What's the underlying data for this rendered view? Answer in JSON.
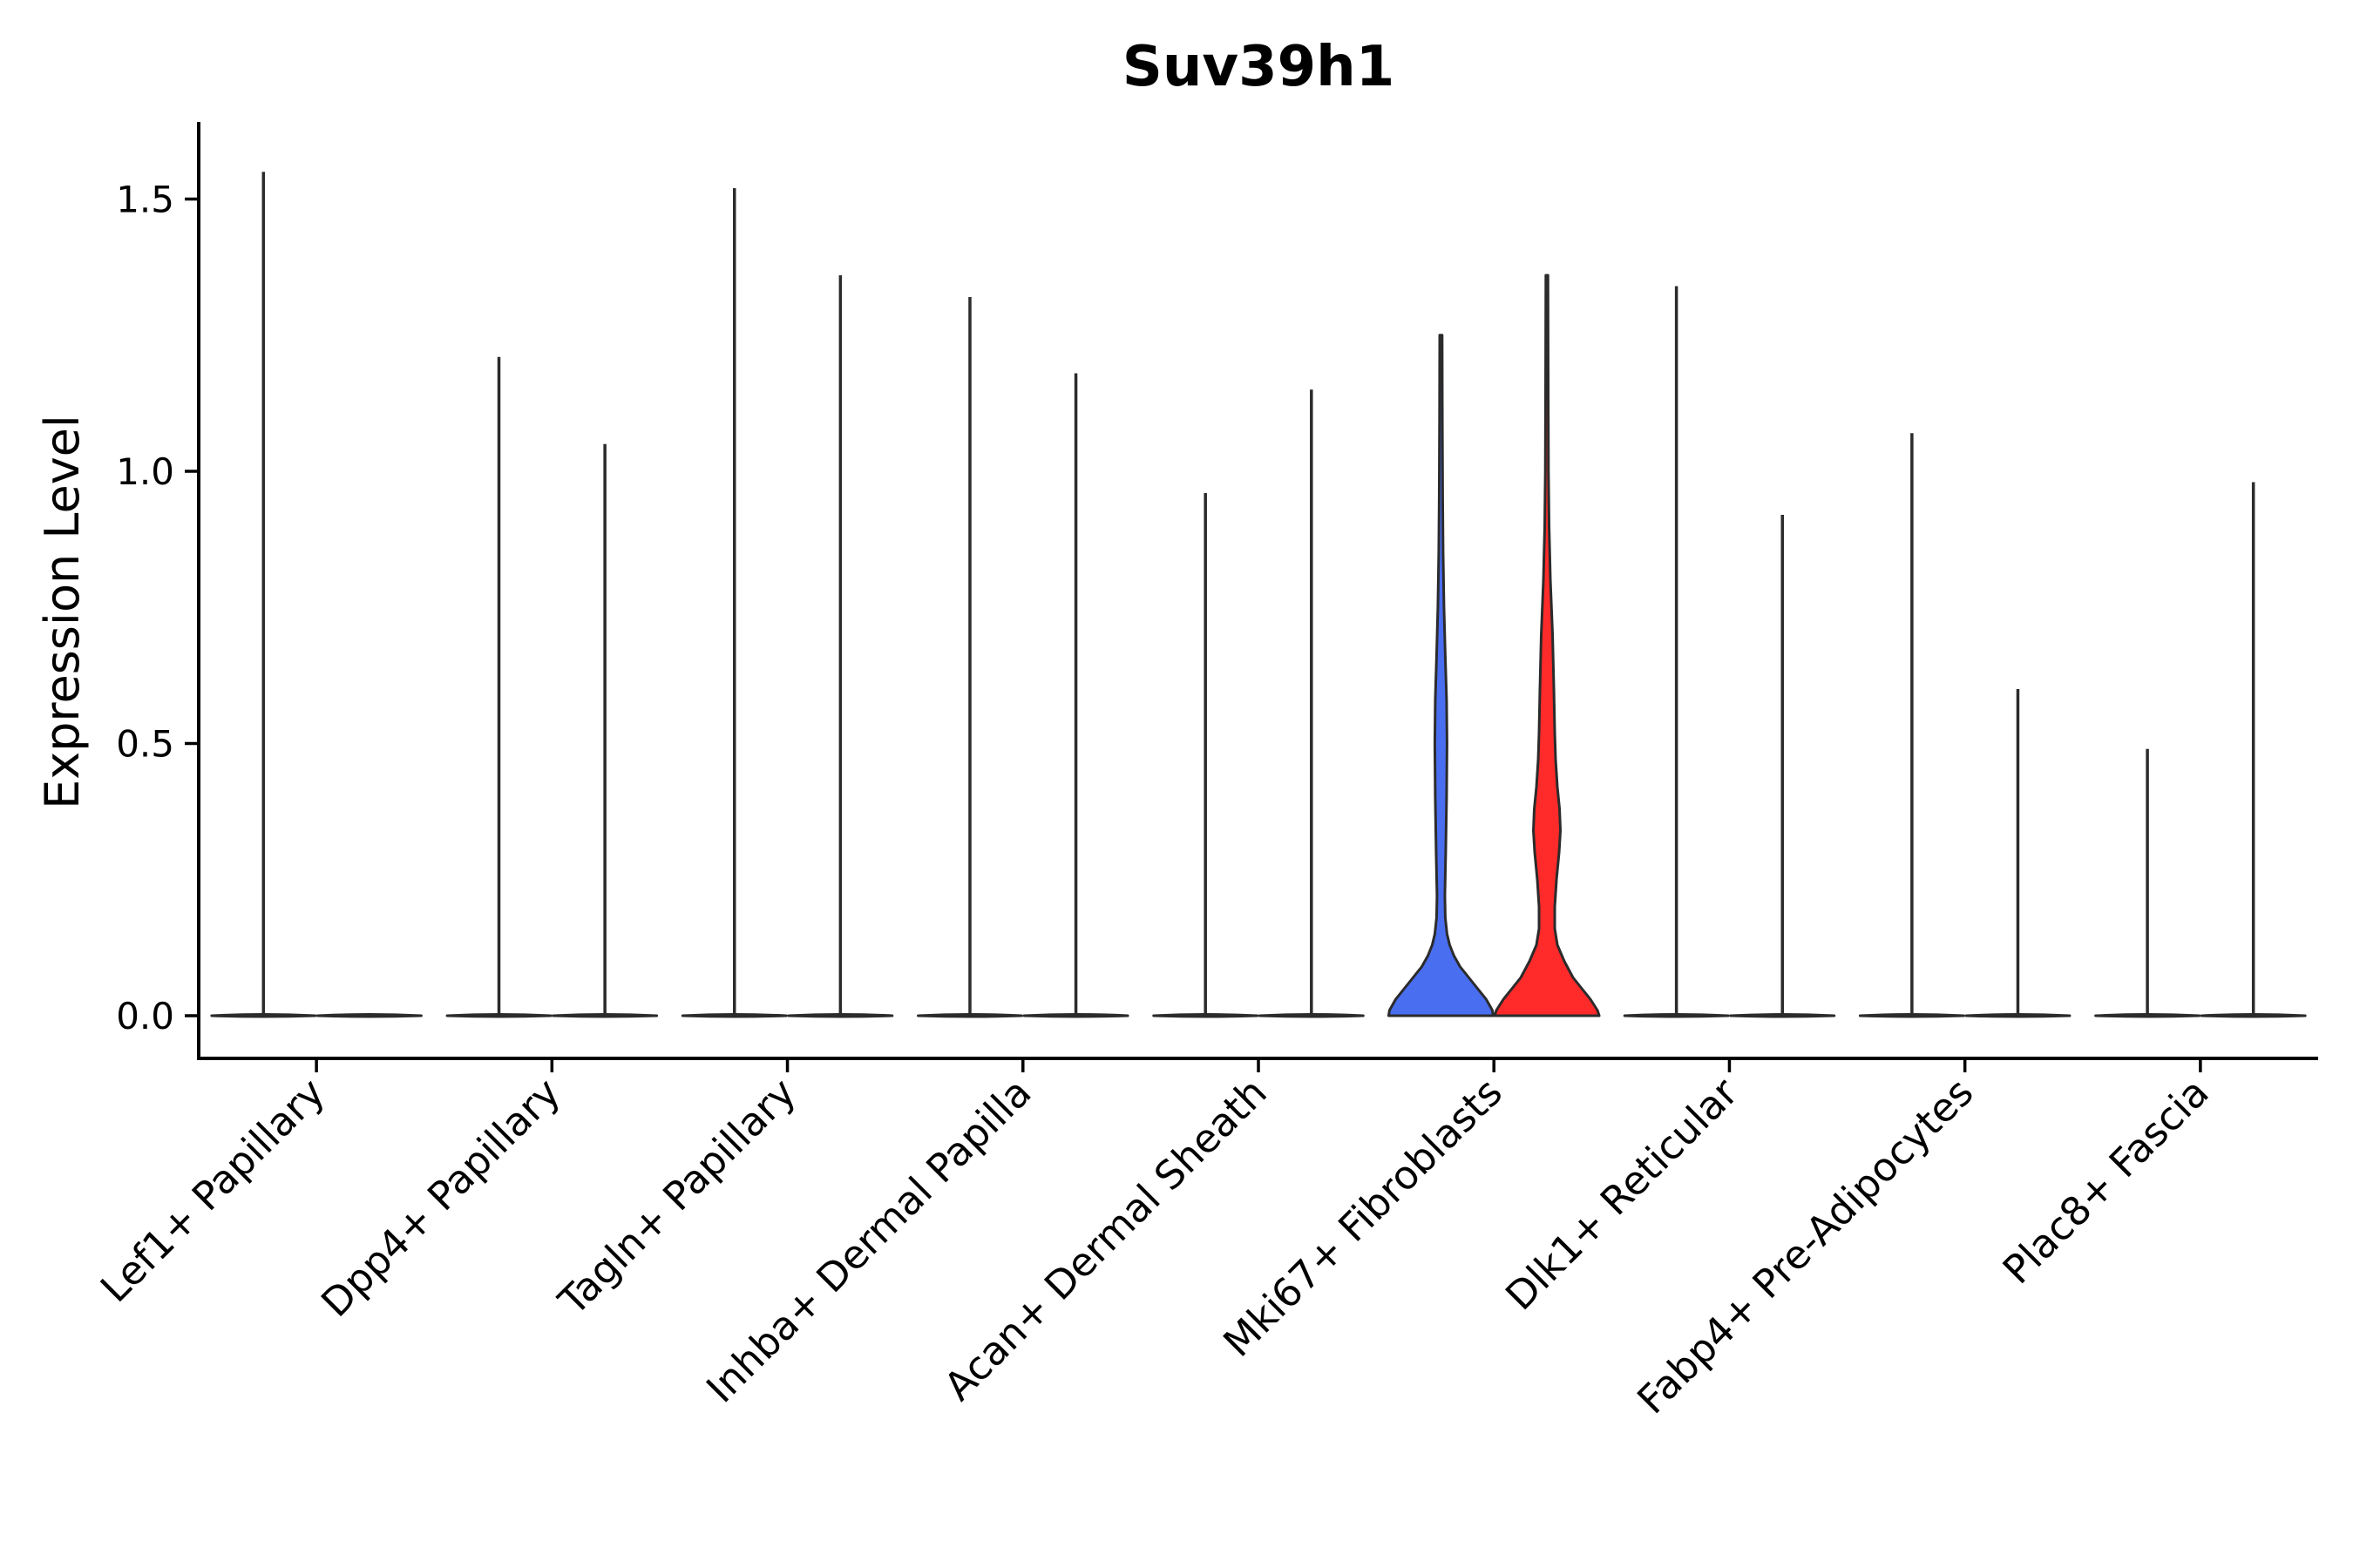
{
  "chart_data": {
    "type": "violin",
    "title": "Suv39h1",
    "xlabel": "",
    "ylabel": "Expression Level",
    "ylim": [
      -0.08,
      1.64
    ],
    "yticks": [
      {
        "value": 0.0,
        "label": "0.0"
      },
      {
        "value": 0.5,
        "label": "0.5"
      },
      {
        "value": 1.0,
        "label": "1.0"
      },
      {
        "value": 1.5,
        "label": "1.5"
      }
    ],
    "categories": [
      "Lef1+ Papillary",
      "Dpp4+ Papillary",
      "Tagln+ Papillary",
      "Inhba+ Dermal Papilla",
      "Acan+ Dermal Sheath",
      "Mki67+ Fibroblasts",
      "Dlk1+ Reticular",
      "Fabp4+ Pre-Adipocytes",
      "Plac8+ Fascia"
    ],
    "groups": [
      "group-1",
      "group-2"
    ],
    "colors": {
      "group-1": "#4a6ef0",
      "group-2": "#ff2a2a"
    },
    "series": [
      {
        "name": "group-1",
        "max_values": [
          1.55,
          1.21,
          1.52,
          1.32,
          0.96,
          1.25,
          1.34,
          1.07,
          0.49
        ]
      },
      {
        "name": "group-2",
        "max_values": [
          0,
          1.05,
          1.36,
          1.18,
          1.15,
          1.36,
          0.92,
          0.6,
          0.98
        ]
      }
    ],
    "filled_violins": [
      {
        "category": "Mki67+ Fibroblasts",
        "group": "group-1",
        "mode_value": 0.0,
        "max": 1.25,
        "secondary_mode": 0.55
      },
      {
        "category": "Mki67+ Fibroblasts",
        "group": "group-2",
        "mode_value": 0.0,
        "max": 1.36,
        "secondary_mode": 0.35
      }
    ],
    "legend": "none"
  }
}
